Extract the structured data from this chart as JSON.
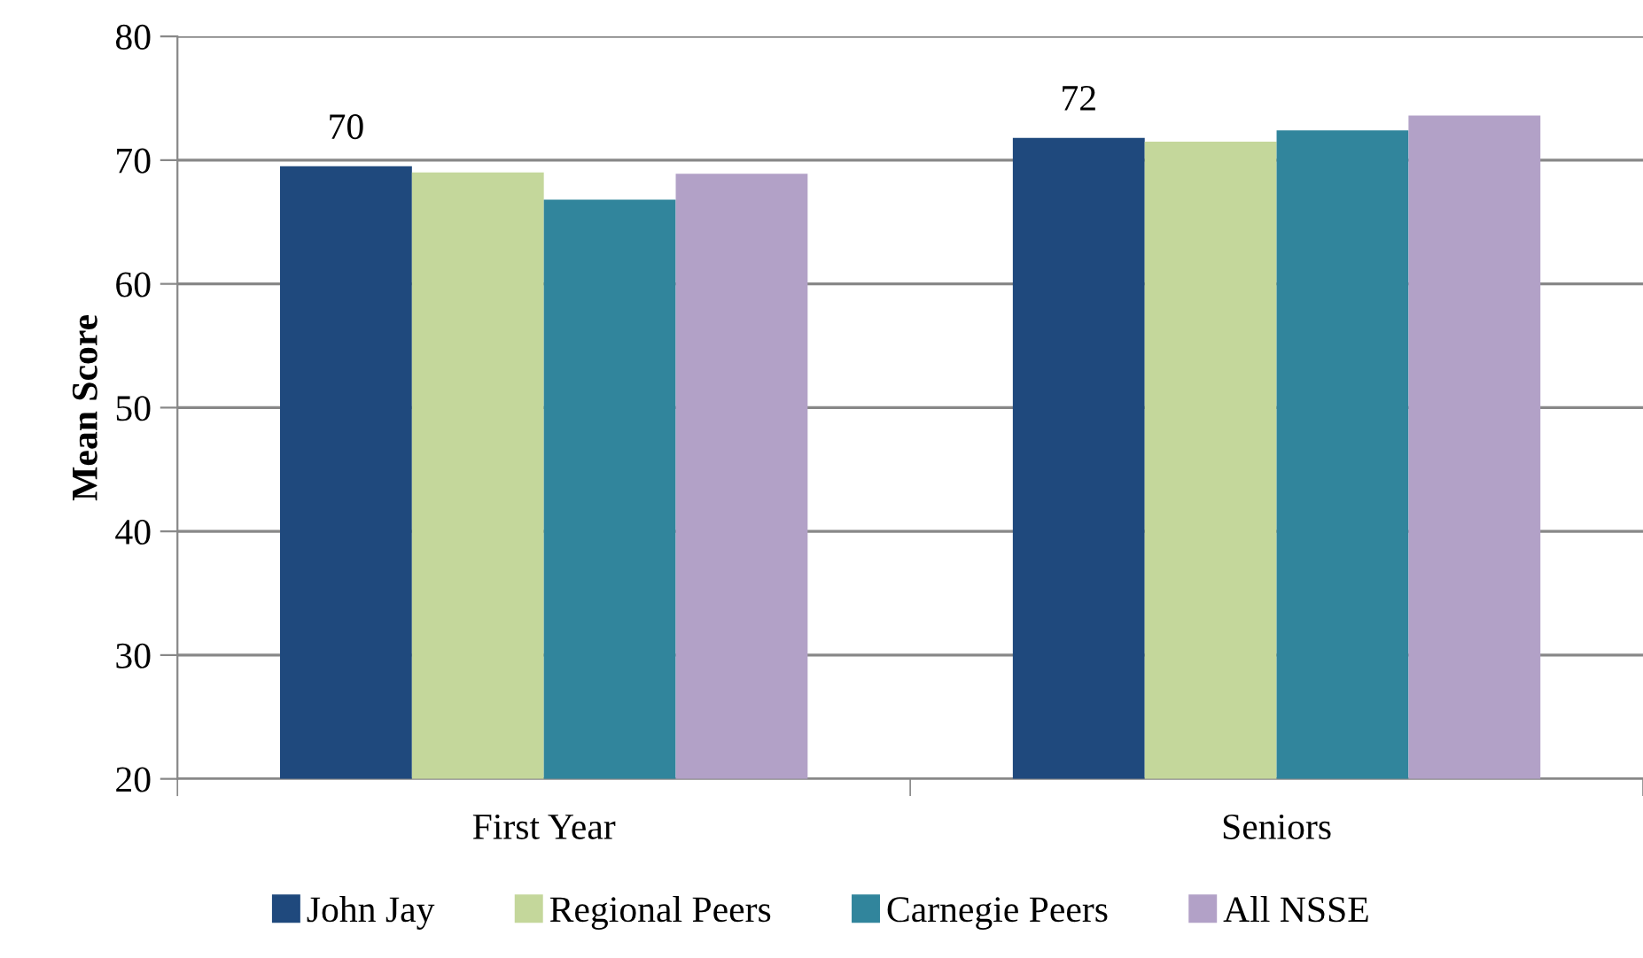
{
  "chart_data": {
    "type": "bar",
    "ylabel": "Mean Score",
    "categories": [
      "First Year",
      "Seniors"
    ],
    "series": [
      {
        "name": "John Jay",
        "color": "#1f497d",
        "values": [
          69.5,
          71.8
        ],
        "value_labels": [
          "70",
          "72"
        ]
      },
      {
        "name": "Regional Peers",
        "color": "#c4d79b",
        "values": [
          69.0,
          71.5
        ]
      },
      {
        "name": "Carnegie Peers",
        "color": "#31859c",
        "values": [
          66.8,
          72.4
        ]
      },
      {
        "name": "All NSSE",
        "color": "#b2a1c7",
        "values": [
          68.9,
          73.6
        ]
      }
    ],
    "ylim": [
      20,
      80
    ],
    "yticks": [
      20,
      30,
      40,
      50,
      60,
      70,
      80
    ],
    "grid": "y",
    "legend": "bottom"
  }
}
